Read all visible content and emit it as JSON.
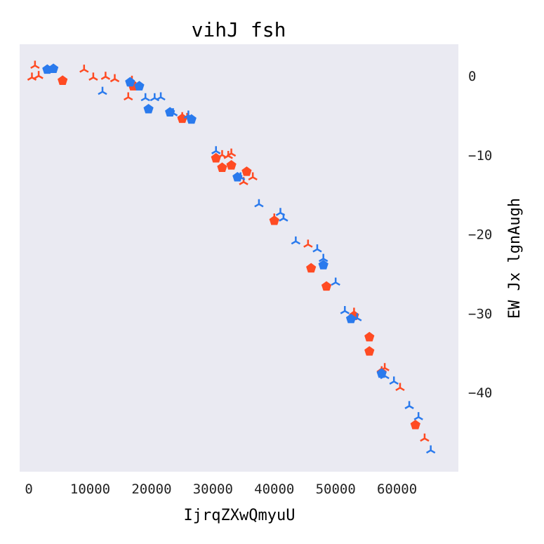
{
  "chart_data": {
    "type": "scatter",
    "title": "vihJ fsh",
    "xlabel": "IjrqZXwQmyuU",
    "ylabel": "EW Jx lgnAugh",
    "xlim": [
      -1500,
      70000
    ],
    "ylim": [
      -50,
      4
    ],
    "xticks": [
      0,
      10000,
      20000,
      30000,
      40000,
      50000,
      60000
    ],
    "xtick_labels": [
      "0",
      "10000",
      "20000",
      "30000",
      "40000",
      "50000",
      "60000"
    ],
    "yticks": [
      0,
      -10,
      -20,
      -30,
      -40
    ],
    "ytick_labels": [
      "0",
      "−10",
      "−20",
      "−30",
      "−40"
    ],
    "y_axis_side": "right",
    "grid": false,
    "background": "#eaeaf2",
    "colors": {
      "orange": "#ff4b23",
      "blue": "#2a7aed"
    },
    "series": [
      {
        "marker": "tri-down",
        "color": "#ff4b23",
        "x": [
          500,
          1000,
          1600,
          9000,
          10500,
          12500,
          14000,
          16200,
          16800,
          25000,
          25800,
          31500,
          32500,
          33000,
          35000,
          36500,
          40000,
          45500,
          53000,
          57500,
          58000,
          60500,
          64500
        ],
        "y": [
          -0.2,
          1.3,
          0.0,
          0.8,
          -0.2,
          -0.1,
          -0.4,
          -2.7,
          -0.6,
          -5.2,
          -5.3,
          -10.0,
          -10.1,
          -9.8,
          -13.4,
          -12.8,
          -18.0,
          -21.3,
          -29.9,
          -37.3,
          -36.9,
          -39.4,
          -45.8
        ]
      },
      {
        "marker": "pentagon",
        "color": "#ff4b23",
        "x": [
          5500,
          17000,
          25000,
          30500,
          31500,
          33000,
          35500,
          40000,
          46000,
          48500,
          53000,
          55500,
          55500,
          57500,
          63000
        ],
        "y": [
          -0.6,
          -1.3,
          -5.4,
          -10.4,
          -11.6,
          -11.3,
          -12.1,
          -18.3,
          -24.3,
          -26.6,
          -30.3,
          -33.0,
          -34.8,
          -37.5,
          -44.1
        ]
      },
      {
        "marker": "tri-down",
        "color": "#2a7aed",
        "x": [
          12000,
          19000,
          20500,
          21500,
          23500,
          26000,
          30500,
          34500,
          37500,
          41000,
          41500,
          43500,
          47000,
          48000,
          50000,
          51500,
          53500,
          58000,
          59500,
          62000,
          63500,
          65500
        ],
        "y": [
          -2.0,
          -2.8,
          -2.8,
          -2.7,
          -4.7,
          -5.0,
          -9.5,
          -12.8,
          -16.2,
          -17.3,
          -18.0,
          -20.9,
          -21.9,
          -23.1,
          -26.1,
          -29.7,
          -30.6,
          -37.9,
          -38.6,
          -41.7,
          -43.1,
          -47.3
        ]
      },
      {
        "marker": "pentagon",
        "color": "#2a7aed",
        "x": [
          3000,
          4000,
          16500,
          18000,
          19500,
          23000,
          26500,
          34000,
          48000,
          52500,
          57500
        ],
        "y": [
          0.8,
          0.9,
          -0.8,
          -1.3,
          -4.2,
          -4.6,
          -5.5,
          -12.8,
          -23.9,
          -30.7,
          -37.6
        ]
      }
    ]
  }
}
